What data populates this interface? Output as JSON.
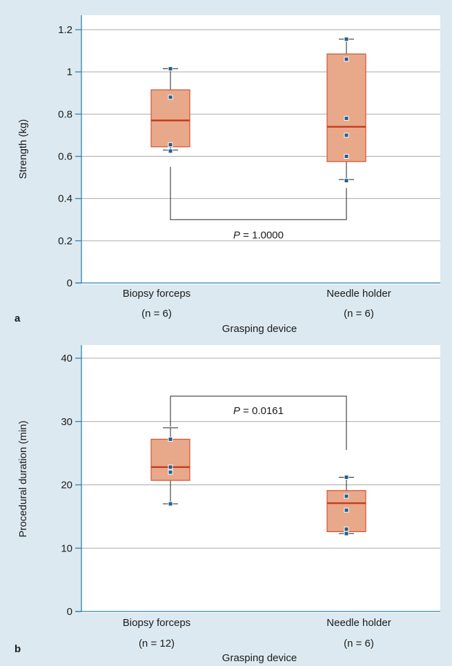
{
  "chart_data": [
    {
      "type": "box",
      "panel_label": "a",
      "ylabel": "Strength (kg)",
      "xlabel": "Grasping device",
      "ylim": [
        0,
        1.2
      ],
      "yticks": [
        0,
        0.2,
        0.4,
        0.6,
        0.8,
        1,
        1.2
      ],
      "ytick_labels": [
        "0",
        "0.2",
        "0.4",
        "0.6",
        "0.8",
        "1",
        "1.2"
      ],
      "grid": true,
      "categories": [
        {
          "label": "Biopsy forceps",
          "n_label": "(n = 6)",
          "min": 0.63,
          "q1": 0.645,
          "median": 0.77,
          "q3": 0.915,
          "max": 1.015,
          "points": [
            0.625,
            0.655,
            0.88,
            1.015
          ]
        },
        {
          "label": "Needle holder",
          "n_label": "(n = 6)",
          "min": 0.49,
          "q1": 0.575,
          "median": 0.74,
          "q3": 1.085,
          "max": 1.155,
          "points": [
            0.485,
            0.6,
            0.7,
            0.78,
            1.06,
            1.155
          ]
        }
      ],
      "comparison": {
        "p_label": "P",
        "p_value": "= 1.0000",
        "bracket_y": 0.3,
        "left_top": 0.55,
        "right_top": 0.45
      }
    },
    {
      "type": "box",
      "panel_label": "b",
      "ylabel": "Procedural duration (min)",
      "xlabel": "Grasping device",
      "ylim": [
        0,
        42
      ],
      "yticks": [
        0,
        10,
        20,
        30,
        40
      ],
      "ytick_labels": [
        "0",
        "10",
        "20",
        "30",
        "40"
      ],
      "grid": true,
      "categories": [
        {
          "label": "Biopsy forceps",
          "n_label": "(n = 12)",
          "min": 17,
          "q1": 20.7,
          "median": 22.8,
          "q3": 27.2,
          "max": 29,
          "points": [
            17,
            22,
            22.8,
            27.2
          ]
        },
        {
          "label": "Needle holder",
          "n_label": "(n = 6)",
          "min": 12.3,
          "q1": 12.6,
          "median": 17.1,
          "q3": 19.1,
          "max": 21.2,
          "points": [
            12.3,
            13,
            16,
            18.2,
            21.2
          ]
        }
      ],
      "comparison": {
        "p_label": "P",
        "p_value": "= 0.0161",
        "bracket_y": 34,
        "left_top": 29.2,
        "right_top": 25.5
      }
    }
  ]
}
